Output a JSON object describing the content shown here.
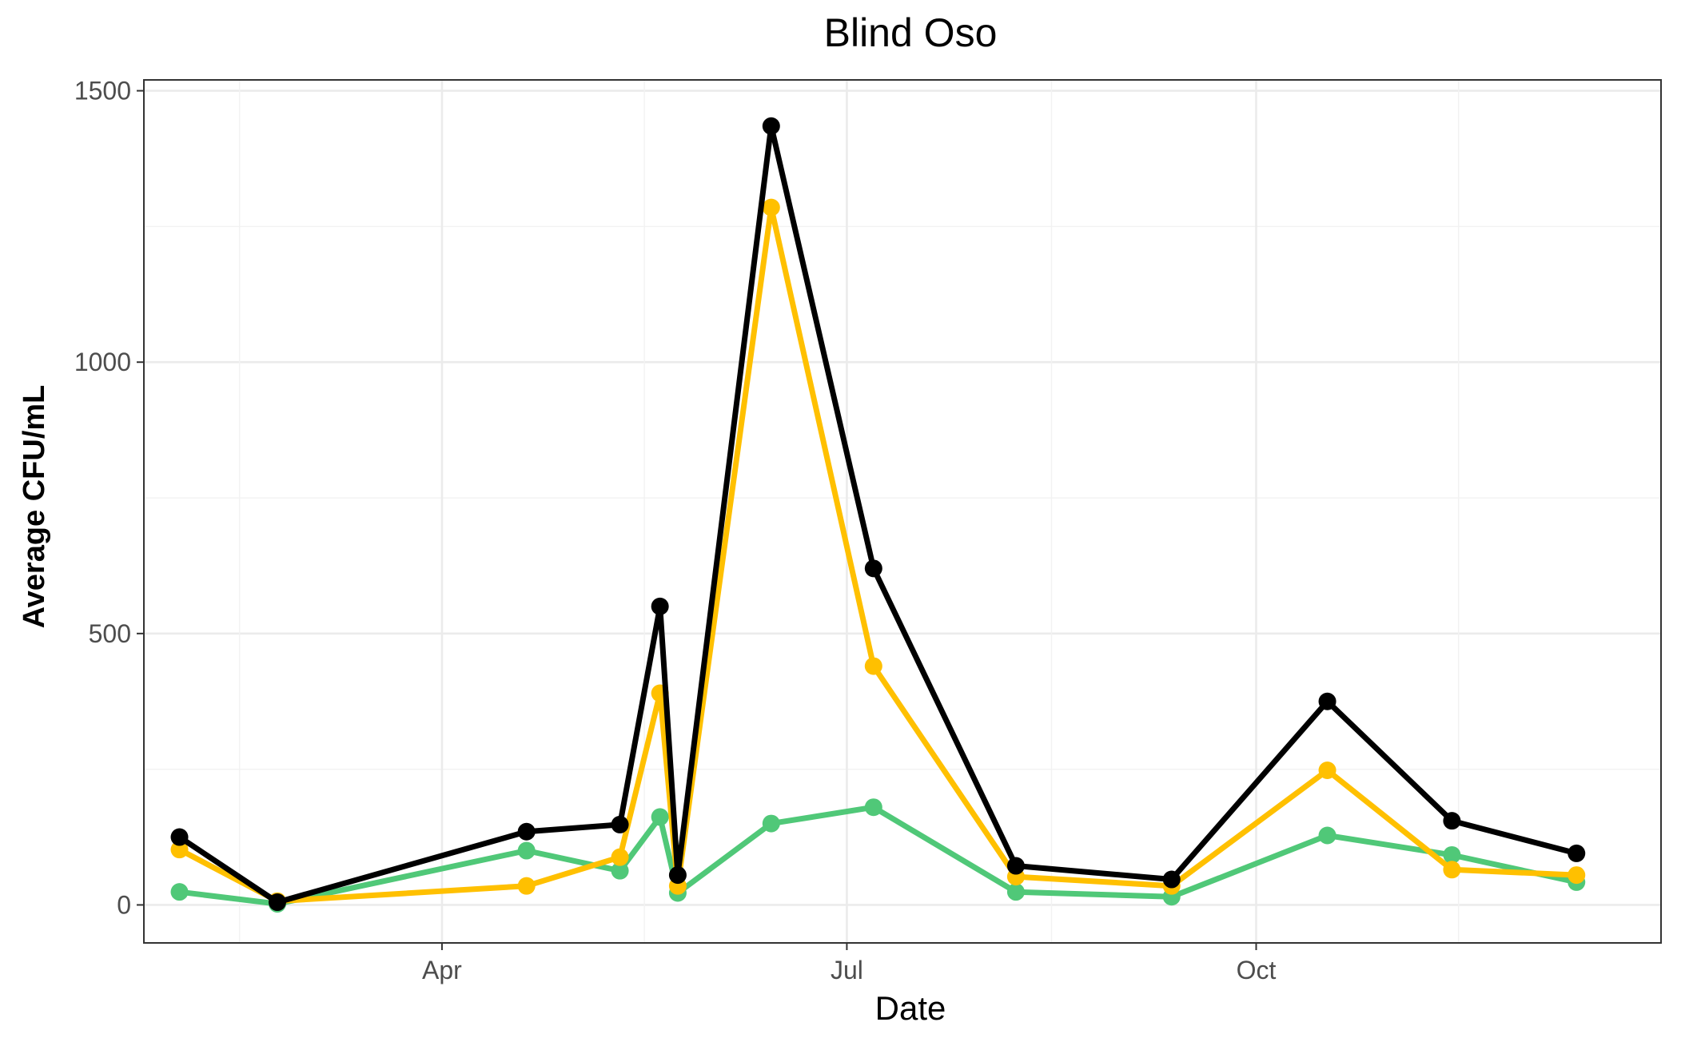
{
  "chart_data": {
    "type": "line",
    "title": "Blind Oso",
    "xlabel": "Date",
    "ylabel": "Average CFU/mL",
    "ylim": [
      -70,
      1520
    ],
    "xlim": [
      "2023-01-24",
      "2023-12-31"
    ],
    "y_ticks": [
      0,
      500,
      1000,
      1500
    ],
    "y_tick_labels": [
      "0",
      "500",
      "1000",
      "1500"
    ],
    "x_ticks": [
      "2023-04-01",
      "2023-07-01",
      "2023-10-01"
    ],
    "x_tick_labels": [
      "Apr",
      "Jul",
      "Oct"
    ],
    "grid": true,
    "legend": "none",
    "x": [
      "2023-02-01",
      "2023-02-23",
      "2023-04-20",
      "2023-05-11",
      "2023-05-20",
      "2023-05-24",
      "2023-06-14",
      "2023-07-07",
      "2023-08-08",
      "2023-09-12",
      "2023-10-17",
      "2023-11-14",
      "2023-12-12"
    ],
    "series": [
      {
        "color": "#000000",
        "values": [
          125,
          5,
          135,
          148,
          550,
          55,
          1435,
          620,
          72,
          47,
          375,
          155,
          95
        ]
      },
      {
        "color": "#FFC000",
        "values": [
          102,
          7,
          35,
          88,
          390,
          35,
          1285,
          440,
          52,
          35,
          248,
          65,
          55
        ]
      },
      {
        "color": "#50C878",
        "values": [
          24,
          2,
          100,
          63,
          162,
          22,
          150,
          180,
          24,
          15,
          128,
          92,
          42
        ]
      }
    ]
  }
}
